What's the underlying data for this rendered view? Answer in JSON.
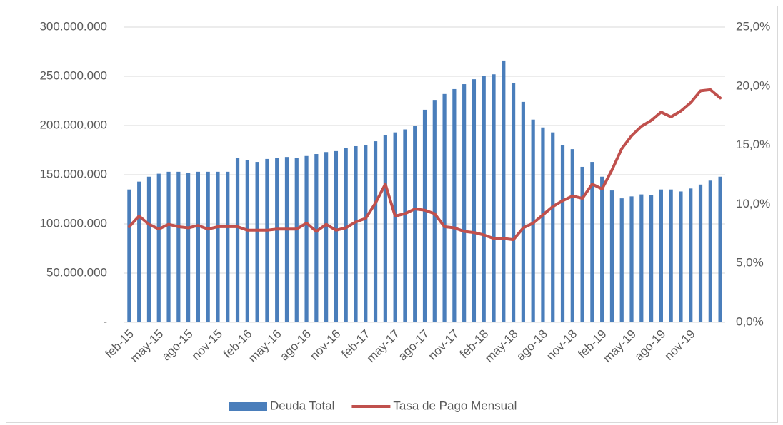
{
  "chart_data": {
    "type": "bar",
    "categories": [
      "feb-15",
      null,
      null,
      "may-15",
      null,
      null,
      "ago-15",
      null,
      null,
      "nov-15",
      null,
      null,
      "feb-16",
      null,
      null,
      "may-16",
      null,
      null,
      "ago-16",
      null,
      null,
      "nov-16",
      null,
      null,
      "feb-17",
      null,
      null,
      "may-17",
      null,
      null,
      "ago-17",
      null,
      null,
      "nov-17",
      null,
      null,
      "feb-18",
      null,
      null,
      "may-18",
      null,
      null,
      "ago-18",
      null,
      null,
      "nov-18",
      null,
      null,
      "feb-19",
      null,
      null,
      "may-19",
      null,
      null,
      "ago-19",
      null,
      null,
      "nov-19",
      null,
      null,
      null
    ],
    "series": [
      {
        "name": "Deuda Total",
        "type": "bar",
        "color": "#4a7ebb",
        "values": [
          135000000,
          143000000,
          148000000,
          151000000,
          153000000,
          153000000,
          152000000,
          153000000,
          153000000,
          153000000,
          153000000,
          167000000,
          165000000,
          163000000,
          166000000,
          167000000,
          168000000,
          167000000,
          169000000,
          171000000,
          173000000,
          174000000,
          177000000,
          179000000,
          180000000,
          184000000,
          190000000,
          193000000,
          196000000,
          200000000,
          216000000,
          226000000,
          232000000,
          237000000,
          242000000,
          247000000,
          250000000,
          252000000,
          266000000,
          243000000,
          224000000,
          206000000,
          198000000,
          193000000,
          180000000,
          176000000,
          158000000,
          163000000,
          148000000,
          134000000,
          126000000,
          128000000,
          130000000,
          129000000,
          135000000,
          135000000,
          133000000,
          136000000,
          140000000,
          144000000,
          148000000
        ]
      },
      {
        "name": "Tasa de Pago Mensual",
        "type": "line",
        "axis": "y2",
        "color": "#c0504d",
        "values": [
          8.1,
          9.0,
          8.3,
          7.9,
          8.3,
          8.1,
          8.0,
          8.2,
          7.9,
          8.1,
          8.1,
          8.1,
          7.8,
          7.8,
          7.8,
          7.9,
          7.9,
          7.9,
          8.4,
          7.7,
          8.3,
          7.8,
          8.0,
          8.5,
          8.8,
          10.1,
          11.7,
          9.0,
          9.2,
          9.6,
          9.5,
          9.2,
          8.1,
          8.0,
          7.7,
          7.6,
          7.4,
          7.1,
          7.1,
          7.0,
          8.0,
          8.4,
          9.1,
          9.8,
          10.3,
          10.7,
          10.5,
          11.7,
          11.3,
          12.9,
          14.7,
          15.8,
          16.6,
          17.1,
          17.8,
          17.4,
          17.9,
          18.6,
          19.6,
          19.7,
          19.0
        ]
      }
    ],
    "ylim": [
      0,
      300000000
    ],
    "yticks": [
      {
        "value": 0,
        "label": "-"
      },
      {
        "value": 50000000,
        "label": "50.000.000"
      },
      {
        "value": 100000000,
        "label": "100.000.000"
      },
      {
        "value": 150000000,
        "label": "150.000.000"
      },
      {
        "value": 200000000,
        "label": "200.000.000"
      },
      {
        "value": 250000000,
        "label": "250.000.000"
      },
      {
        "value": 300000000,
        "label": "300.000.000"
      }
    ],
    "y2lim": [
      0,
      25
    ],
    "y2ticks": [
      {
        "value": 0,
        "label": "0,0%"
      },
      {
        "value": 5,
        "label": "5,0%"
      },
      {
        "value": 10,
        "label": "10,0%"
      },
      {
        "value": 15,
        "label": "15,0%"
      },
      {
        "value": 20,
        "label": "20,0%"
      },
      {
        "value": 25,
        "label": "25,0%"
      }
    ],
    "grid": true,
    "legend": "bottom"
  }
}
